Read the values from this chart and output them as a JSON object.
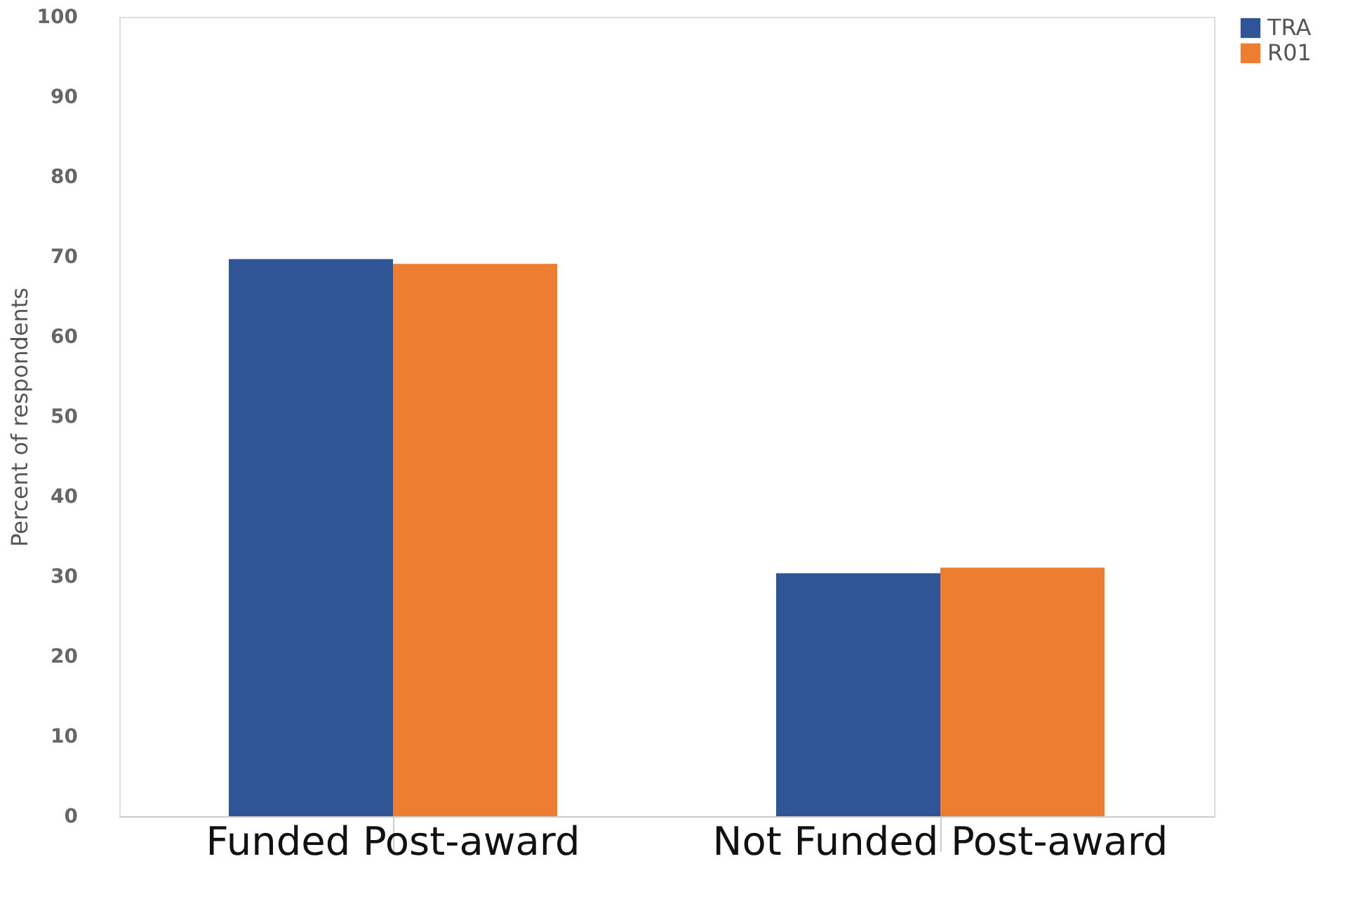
{
  "chart_data": {
    "type": "bar",
    "ylabel": "Percent of respondents",
    "categories": [
      "Funded Post-award",
      "Not Funded Post-award"
    ],
    "series": [
      {
        "name": "TRA",
        "color": "#2f5597",
        "values": [
          69.7,
          30.4
        ]
      },
      {
        "name": "R01",
        "color": "#ed7d31",
        "values": [
          69.1,
          31.1
        ]
      }
    ],
    "ylim": [
      0,
      100
    ],
    "yticks": [
      0,
      10,
      20,
      30,
      40,
      50,
      60,
      70,
      80,
      90,
      100
    ],
    "grid": false,
    "legend": "right"
  }
}
